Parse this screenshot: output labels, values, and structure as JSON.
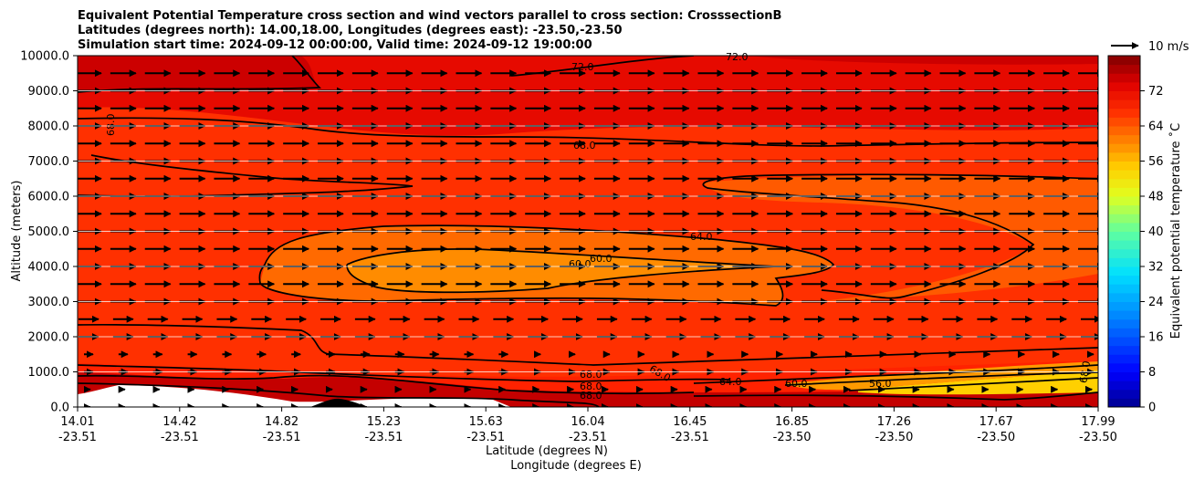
{
  "chart_data": {
    "type": "heatmap",
    "title_lines": [
      "Equivalent Potential Temperature cross section and wind vectors parallel to cross section: CrosssectionB",
      "Latitudes (degrees north): 14.00,18.00, Longitudes (degrees east): -23.50,-23.50",
      "Simulation start time: 2024-09-12 00:00:00, Valid time: 2024-09-12 19:00:00"
    ],
    "ylabel": "Altitude (meters)",
    "xlabel_lat": "Latitude (degrees N)",
    "xlabel_lon": "Longitude (degrees E)",
    "ylim": [
      0,
      10000
    ],
    "y_ticks": [
      "0.0",
      "1000.0",
      "2000.0",
      "3000.0",
      "4000.0",
      "5000.0",
      "6000.0",
      "7000.0",
      "8000.0",
      "9000.0",
      "10000.0"
    ],
    "x_ticks_lat": [
      "14.01",
      "14.42",
      "14.82",
      "15.23",
      "15.63",
      "16.04",
      "16.45",
      "16.85",
      "17.26",
      "17.67",
      "17.99"
    ],
    "x_ticks_lon": [
      "-23.51",
      "-23.51",
      "-23.51",
      "-23.51",
      "-23.51",
      "-23.51",
      "-23.51",
      "-23.50",
      "-23.50",
      "-23.50",
      "-23.50"
    ],
    "colorbar": {
      "label": "Equivalent potential temperature ˚C",
      "range": [
        0,
        80
      ],
      "ticks": [
        "0",
        "8",
        "16",
        "24",
        "32",
        "40",
        "48",
        "56",
        "64",
        "72"
      ]
    },
    "contour_labels": [
      "72.0",
      "72.0",
      "68.0",
      "68.0",
      "64.0",
      "60.0",
      "60.0",
      "68.0",
      "68.0",
      "68.0",
      "68.0",
      "64.0",
      "60.0",
      "56.0",
      "68.0"
    ],
    "wind_key": "10 m/s",
    "wind_direction": "parallel to cross section, towards increasing latitude"
  }
}
